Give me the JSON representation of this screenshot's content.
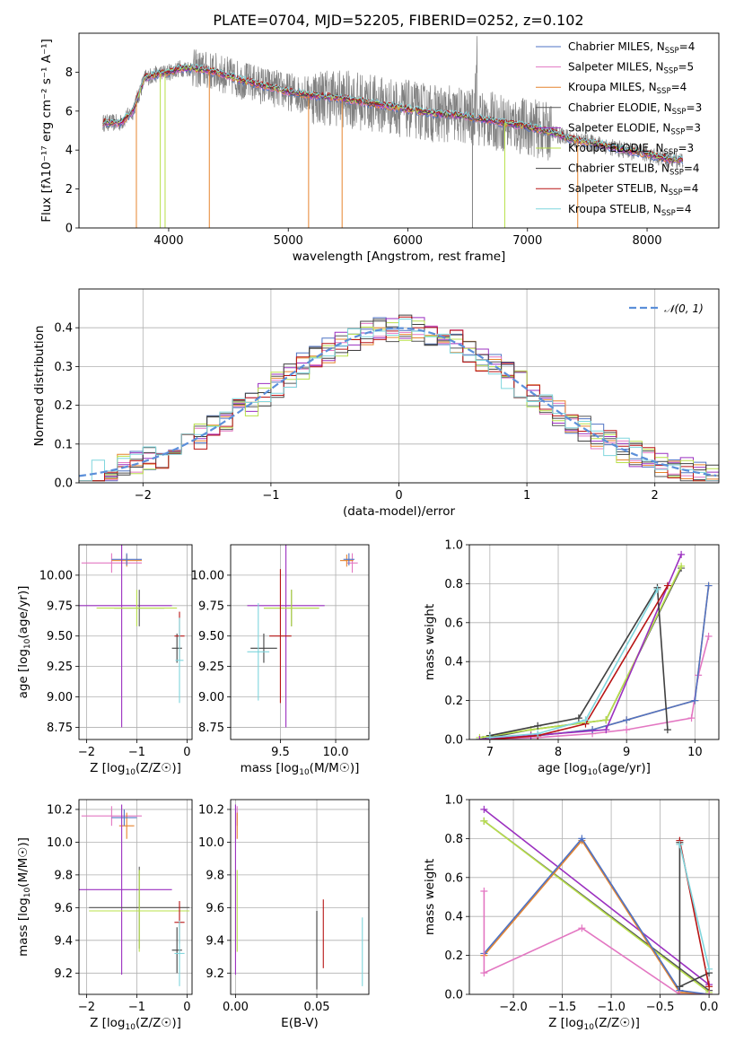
{
  "figure_title": "PLATE=0704, MJD=52205, FIBERID=0252, z=0.102",
  "colors": {
    "Chabrier MILES": "#4f73c4",
    "Salpeter MILES": "#e377c2",
    "Kroupa MILES": "#e6842e",
    "Chabrier ELODIE": "#555555",
    "Salpeter ELODIE": "#9b30c0",
    "Kroupa ELODIE": "#b8e04a",
    "Chabrier STELIB": "#404040",
    "Salpeter STELIB": "#b81414",
    "Kroupa STELIB": "#7fd6dd",
    "data": "#808080",
    "normal": "#5b8fd9"
  },
  "chart_data": [
    {
      "id": "spectrum",
      "type": "line",
      "title": "PLATE=0704, MJD=52205, FIBERID=0252, z=0.102",
      "xlabel": "wavelength [Angstrom, rest frame]",
      "ylabel": "Flux [fλ10⁻¹⁷ erg cm⁻² s⁻¹ A⁻¹]",
      "xlim": [
        3250,
        8600
      ],
      "ylim": [
        0,
        10
      ],
      "xticks": [
        4000,
        5000,
        6000,
        7000,
        8000
      ],
      "yticks": [
        0,
        2,
        4,
        6,
        8
      ],
      "legend_position": "upper right",
      "legend": [
        {
          "label": "Chabrier MILES, N",
          "sub": "SSP",
          "suffix": "=4"
        },
        {
          "label": "Salpeter MILES, N",
          "sub": "SSP",
          "suffix": "=5"
        },
        {
          "label": "Kroupa MILES, N",
          "sub": "SSP",
          "suffix": "=4"
        },
        {
          "label": "Chabrier ELODIE, N",
          "sub": "SSP",
          "suffix": "=3"
        },
        {
          "label": "Salpeter ELODIE, N",
          "sub": "SSP",
          "suffix": "=3"
        },
        {
          "label": "Kroupa ELODIE, N",
          "sub": "SSP",
          "suffix": "=3"
        },
        {
          "label": "Chabrier STELIB, N",
          "sub": "SSP",
          "suffix": "=4"
        },
        {
          "label": "Salpeter STELIB, N",
          "sub": "SSP",
          "suffix": "=4"
        },
        {
          "label": "Kroupa STELIB, N",
          "sub": "SSP",
          "suffix": "=4"
        }
      ],
      "continuum": {
        "x": [
          3450,
          3600,
          3700,
          3800,
          3900,
          4000,
          4100,
          4200,
          4400,
          4600,
          4800,
          5000,
          5200,
          5400,
          5600,
          5800,
          6000,
          6200,
          6400,
          6600,
          6800,
          7000,
          7200,
          7400,
          7600,
          7800,
          8000,
          8200
        ],
        "y": [
          5.4,
          5.4,
          6.0,
          7.7,
          7.9,
          8.0,
          8.2,
          8.2,
          8.0,
          7.6,
          7.3,
          7.0,
          6.8,
          6.7,
          6.5,
          6.3,
          6.1,
          5.9,
          5.8,
          5.6,
          5.4,
          5.2,
          4.9,
          4.5,
          4.3,
          4.0,
          3.8,
          3.5
        ]
      },
      "dips": [
        3730,
        3930,
        3970,
        4340,
        5170,
        5450,
        6540,
        6810,
        7420
      ]
    },
    {
      "id": "residuals",
      "type": "line",
      "xlabel": "(data-model)/error",
      "ylabel": "Normed distribution",
      "xlim": [
        -2.5,
        2.5
      ],
      "ylim": [
        0,
        0.5
      ],
      "xticks": [
        -2,
        -1,
        0,
        1,
        2
      ],
      "yticks": [
        0.0,
        0.1,
        0.2,
        0.3,
        0.4
      ],
      "grid": true,
      "legend": [
        {
          "label": "𝒩(0, 1)"
        }
      ],
      "legend_position": "upper right"
    },
    {
      "id": "age_vs_Z",
      "type": "scatter",
      "xlabel": "Z [log10(Z/Z☉)]",
      "ylabel": "age  [log10(age/yr)]",
      "xlim": [
        -2.15,
        0.1
      ],
      "ylim": [
        8.65,
        10.25
      ],
      "xticks": [
        -2,
        -1,
        0
      ],
      "yticks": [
        8.75,
        9.0,
        9.25,
        9.5,
        9.75,
        10.0
      ],
      "grid": true,
      "points": [
        {
          "model": "Salpeter MILES",
          "x": -1.5,
          "xerr": 0.6,
          "y": 10.1,
          "yerr": 0.08
        },
        {
          "model": "Kroupa MILES",
          "x": -1.2,
          "xerr": 0.3,
          "y": 10.12,
          "yerr": 0.05
        },
        {
          "model": "Chabrier MILES",
          "x": -1.2,
          "xerr": 0.3,
          "y": 10.13,
          "yerr": 0.05
        },
        {
          "model": "Salpeter ELODIE",
          "x": -1.3,
          "xerr": 1.0,
          "y": 9.75,
          "yerr": 1.0
        },
        {
          "model": "Chabrier ELODIE",
          "x": -0.95,
          "xerr": 0.5,
          "y": 9.73,
          "yerr": 0.15
        },
        {
          "model": "Kroupa ELODIE",
          "x": -1.0,
          "xerr": 0.8,
          "y": 9.73,
          "yerr": 0.15
        },
        {
          "model": "Chabrier STELIB",
          "x": -0.2,
          "xerr": 0.1,
          "y": 9.4,
          "yerr": 0.12
        },
        {
          "model": "Salpeter STELIB",
          "x": -0.15,
          "xerr": 0.1,
          "y": 9.5,
          "yerr": 0.2
        },
        {
          "model": "Kroupa STELIB",
          "x": -0.15,
          "xerr": 0.08,
          "y": 9.3,
          "yerr": 0.35
        }
      ]
    },
    {
      "id": "age_vs_mass",
      "type": "scatter",
      "xlabel": "mass [log10(M/M☉)]",
      "ylabel": "",
      "xlim": [
        9.05,
        10.3
      ],
      "ylim": [
        8.65,
        10.25
      ],
      "xticks": [
        9.5,
        10.0
      ],
      "yticks": [
        8.75,
        9.0,
        9.25,
        9.5,
        9.75,
        10.0
      ],
      "grid": true,
      "points": [
        {
          "model": "Salpeter MILES",
          "x": 10.15,
          "xerr": 0.05,
          "y": 10.1,
          "yerr": 0.08
        },
        {
          "model": "Kroupa MILES",
          "x": 10.1,
          "xerr": 0.06,
          "y": 10.12,
          "yerr": 0.05
        },
        {
          "model": "Chabrier MILES",
          "x": 10.12,
          "xerr": 0.05,
          "y": 10.13,
          "yerr": 0.05
        },
        {
          "model": "Salpeter ELODIE",
          "x": 9.55,
          "xerr": 0.35,
          "y": 9.75,
          "yerr": 1.0
        },
        {
          "model": "Chabrier ELODIE",
          "x": 9.6,
          "xerr": 0.25,
          "y": 9.73,
          "yerr": 0.15
        },
        {
          "model": "Kroupa ELODIE",
          "x": 9.6,
          "xerr": 0.25,
          "y": 9.73,
          "yerr": 0.15
        },
        {
          "model": "Chabrier STELIB",
          "x": 9.35,
          "xerr": 0.12,
          "y": 9.4,
          "yerr": 0.12
        },
        {
          "model": "Salpeter STELIB",
          "x": 9.5,
          "xerr": 0.1,
          "y": 9.5,
          "yerr": 0.55
        },
        {
          "model": "Kroupa STELIB",
          "x": 9.3,
          "xerr": 0.1,
          "y": 9.37,
          "yerr": 0.4
        }
      ]
    },
    {
      "id": "mass_weight_vs_age",
      "type": "line",
      "xlabel": "age  [log10(age/yr)]",
      "ylabel": "mass weight",
      "xlim": [
        6.7,
        10.35
      ],
      "ylim": [
        0,
        1
      ],
      "xticks": [
        7,
        8,
        9,
        10
      ],
      "yticks": [
        0.0,
        0.2,
        0.4,
        0.6,
        0.8,
        1.0
      ],
      "grid": true,
      "series": [
        {
          "model": "Kroupa MILES",
          "x": [
            6.9,
            7.7,
            8.5,
            9.0,
            10.0,
            10.2
          ],
          "y": [
            0.0,
            0.02,
            0.05,
            0.1,
            0.2,
            0.79
          ]
        },
        {
          "model": "Salpeter MILES",
          "x": [
            6.9,
            7.7,
            8.5,
            9.0,
            9.95,
            10.05,
            10.2
          ],
          "y": [
            0.0,
            0.01,
            0.03,
            0.05,
            0.11,
            0.33,
            0.53
          ]
        },
        {
          "model": "Chabrier MILES",
          "x": [
            6.9,
            7.7,
            8.5,
            9.0,
            10.0,
            10.2
          ],
          "y": [
            0.0,
            0.02,
            0.05,
            0.1,
            0.2,
            0.79
          ]
        },
        {
          "model": "Chabrier ELODIE",
          "x": [
            6.85,
            7.6,
            8.7,
            9.8
          ],
          "y": [
            0.0,
            0.05,
            0.1,
            0.88
          ]
        },
        {
          "model": "Kroupa ELODIE",
          "x": [
            6.85,
            7.6,
            8.7,
            9.8
          ],
          "y": [
            0.01,
            0.05,
            0.1,
            0.89
          ]
        },
        {
          "model": "Salpeter ELODIE",
          "x": [
            6.85,
            7.6,
            8.7,
            9.8
          ],
          "y": [
            0.0,
            0.02,
            0.05,
            0.95
          ]
        },
        {
          "model": "Chabrier STELIB",
          "x": [
            7.0,
            7.7,
            8.3,
            9.45,
            9.6
          ],
          "y": [
            0.02,
            0.07,
            0.11,
            0.78,
            0.05
          ]
        },
        {
          "model": "Salpeter STELIB",
          "x": [
            7.0,
            7.7,
            8.4,
            9.6
          ],
          "y": [
            0.0,
            0.02,
            0.08,
            0.79
          ]
        },
        {
          "model": "Kroupa STELIB",
          "x": [
            7.0,
            7.7,
            8.4,
            9.45
          ],
          "y": [
            0.01,
            0.03,
            0.1,
            0.77
          ]
        }
      ]
    },
    {
      "id": "mass_vs_Z",
      "type": "scatter",
      "xlabel": "Z [log10(Z/Z☉)]",
      "ylabel": "mass [log10(M/M☉)]",
      "xlim": [
        -2.15,
        0.1
      ],
      "ylim": [
        9.07,
        10.26
      ],
      "xticks": [
        -2,
        -1,
        0
      ],
      "yticks": [
        9.2,
        9.4,
        9.6,
        9.8,
        10.0,
        10.2
      ],
      "grid": true,
      "points": [
        {
          "model": "Salpeter MILES",
          "x": -1.5,
          "xerr": 0.6,
          "y": 10.16,
          "yerr": 0.06
        },
        {
          "model": "Kroupa MILES",
          "x": -1.2,
          "xerr": 0.15,
          "y": 10.1,
          "yerr": 0.08
        },
        {
          "model": "Chabrier MILES",
          "x": -1.25,
          "xerr": 0.25,
          "y": 10.15,
          "yerr": 0.05
        },
        {
          "model": "Salpeter ELODIE",
          "x": -1.3,
          "xerr": 1.0,
          "y": 9.71,
          "yerr": 0.52
        },
        {
          "model": "Chabrier ELODIE",
          "x": -0.95,
          "xerr": 1.0,
          "y": 9.6,
          "yerr": 0.25
        },
        {
          "model": "Kroupa ELODIE",
          "x": -0.95,
          "xerr": 1.0,
          "y": 9.58,
          "yerr": 0.25
        },
        {
          "model": "Chabrier STELIB",
          "x": -0.2,
          "xerr": 0.1,
          "y": 9.34,
          "yerr": 0.14
        },
        {
          "model": "Salpeter STELIB",
          "x": -0.15,
          "xerr": 0.1,
          "y": 9.51,
          "yerr": 0.13
        },
        {
          "model": "Kroupa STELIB",
          "x": -0.15,
          "xerr": 0.1,
          "y": 9.32,
          "yerr": 0.2
        }
      ]
    },
    {
      "id": "mass_vs_ebv",
      "type": "scatter",
      "xlabel": "E(B-V)",
      "ylabel": "",
      "xlim": [
        -0.003,
        0.082
      ],
      "ylim": [
        9.07,
        10.26
      ],
      "xticks": [
        0.0,
        0.05
      ],
      "yticks": [
        9.2,
        9.4,
        9.6,
        9.8,
        10.0,
        10.2
      ],
      "grid": true,
      "points": [
        {
          "model": "Salpeter MILES",
          "x": 0.001,
          "xerr": 0,
          "y": 10.16,
          "yerr": 0.06
        },
        {
          "model": "Kroupa MILES",
          "x": 0.001,
          "xerr": 0,
          "y": 10.1,
          "yerr": 0.08
        },
        {
          "model": "Salpeter ELODIE",
          "x": 0.0,
          "xerr": 0,
          "y": 9.71,
          "yerr": 0.52
        },
        {
          "model": "Kroupa ELODIE",
          "x": 0.001,
          "xerr": 0,
          "y": 9.58,
          "yerr": 0.25
        },
        {
          "model": "Chabrier STELIB",
          "x": 0.05,
          "xerr": 0,
          "y": 9.34,
          "yerr": 0.24
        },
        {
          "model": "Salpeter STELIB",
          "x": 0.054,
          "xerr": 0,
          "y": 9.44,
          "yerr": 0.21
        },
        {
          "model": "Kroupa STELIB",
          "x": 0.078,
          "xerr": 0,
          "y": 9.33,
          "yerr": 0.21
        }
      ]
    },
    {
      "id": "mass_weight_vs_Z",
      "type": "line",
      "xlabel": "Z [log10(Z/Z☉)]",
      "ylabel": "mass weight",
      "xlim": [
        -2.45,
        0.1
      ],
      "ylim": [
        0,
        1
      ],
      "xticks": [
        -2.0,
        -1.5,
        -1.0,
        -0.5,
        0.0
      ],
      "yticks": [
        0.0,
        0.2,
        0.4,
        0.6,
        0.8,
        1.0
      ],
      "grid": true,
      "series": [
        {
          "model": "Salpeter ELODIE",
          "x": [
            -2.3,
            0.0
          ],
          "y": [
            0.95,
            0.05
          ]
        },
        {
          "model": "Chabrier ELODIE",
          "x": [
            -2.3,
            0.0
          ],
          "y": [
            0.89,
            0.02
          ]
        },
        {
          "model": "Kroupa ELODIE",
          "x": [
            -2.3,
            0.0
          ],
          "y": [
            0.89,
            0.01
          ]
        },
        {
          "model": "Kroupa MILES",
          "x": [
            -2.3,
            -1.3,
            -0.3,
            0.0
          ],
          "y": [
            0.2,
            0.79,
            0.01,
            0.0
          ]
        },
        {
          "model": "Chabrier MILES",
          "x": [
            -2.3,
            -1.3,
            -0.3,
            0.0
          ],
          "y": [
            0.21,
            0.8,
            0.02,
            0.0
          ]
        },
        {
          "model": "Salpeter MILES",
          "x": [
            -2.3,
            -2.3,
            -1.3,
            -0.3,
            0.0
          ],
          "y": [
            0.53,
            0.11,
            0.34,
            0.0,
            0.0
          ]
        },
        {
          "model": "Chabrier STELIB",
          "x": [
            -0.3,
            -0.3,
            0.0
          ],
          "y": [
            0.78,
            0.04,
            0.11
          ]
        },
        {
          "model": "Salpeter STELIB",
          "x": [
            -0.3,
            0.0
          ],
          "y": [
            0.79,
            0.04
          ]
        },
        {
          "model": "Kroupa STELIB",
          "x": [
            -0.3,
            0.0
          ],
          "y": [
            0.77,
            0.13
          ]
        }
      ]
    }
  ]
}
